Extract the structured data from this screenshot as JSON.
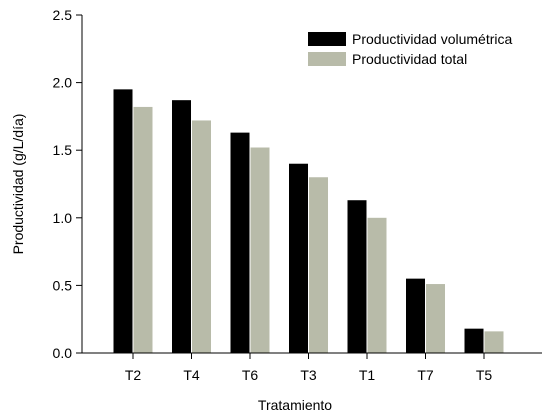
{
  "chart_data": {
    "type": "bar",
    "title": "",
    "xlabel": "Tratamiento",
    "ylabel": "Productividad (g/L/día)",
    "categories": [
      "T2",
      "T4",
      "T6",
      "T3",
      "T1",
      "T7",
      "T5"
    ],
    "series": [
      {
        "name": "Productividad volumétrica",
        "color": "#000000",
        "values": [
          1.95,
          1.87,
          1.63,
          1.4,
          1.13,
          0.55,
          0.18
        ]
      },
      {
        "name": "Productividad total",
        "color": "#b8bba9",
        "values": [
          1.82,
          1.72,
          1.52,
          1.3,
          1.0,
          0.51,
          0.16
        ]
      }
    ],
    "ylim": [
      0,
      2.5
    ],
    "yticks": [
      "0.0",
      "0.5",
      "1.0",
      "1.5",
      "2.0",
      "2.5"
    ],
    "grid": false,
    "legend_position": "top-right"
  }
}
